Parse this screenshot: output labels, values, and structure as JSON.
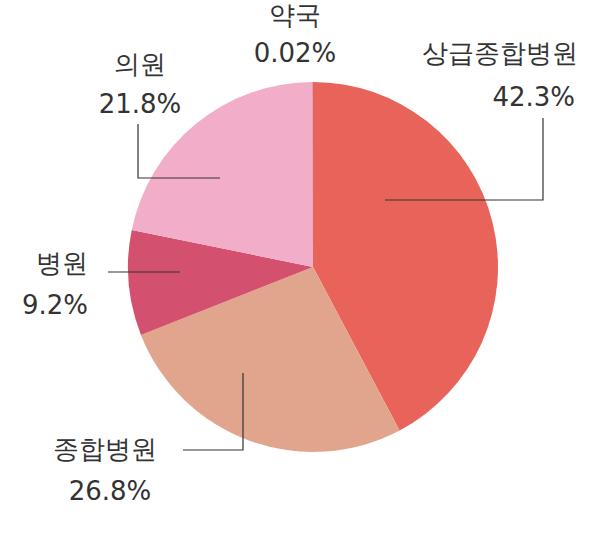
{
  "chart_data": {
    "type": "pie",
    "categories": [
      "상급종합병원",
      "종합병원",
      "병원",
      "의원",
      "약국"
    ],
    "values": [
      42.3,
      26.8,
      9.2,
      21.8,
      0.02
    ],
    "value_labels": [
      "42.3%",
      "26.8%",
      "9.2%",
      "21.8%",
      "0.02%"
    ],
    "colors": [
      "#e8645a",
      "#e0a58c",
      "#d4506f",
      "#f2adc9",
      "#b0283c"
    ],
    "data_labels": true
  }
}
